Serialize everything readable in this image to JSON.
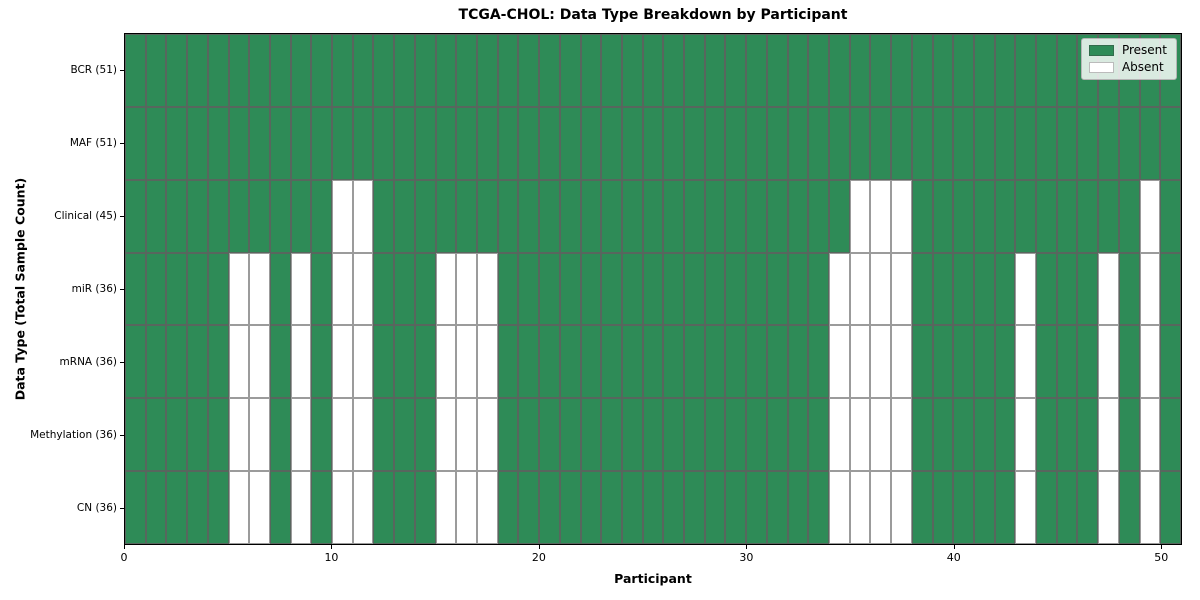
{
  "chart_data": {
    "type": "heatmap",
    "title": "TCGA-CHOL: Data Type Breakdown by Participant",
    "xlabel": "Participant",
    "ylabel": "Data Type (Total Sample Count)",
    "n_participants": 51,
    "x_range": [
      0,
      51
    ],
    "x_ticks": [
      0,
      10,
      20,
      30,
      40,
      50
    ],
    "grid": "cell-borders",
    "legend_position": "upper right",
    "legend": [
      {
        "label": "Present",
        "color": "#2e8b57"
      },
      {
        "label": "Absent",
        "color": "#ffffff"
      }
    ],
    "colors": {
      "present": "#2e8b57",
      "absent": "#ffffff",
      "cell_edge": "#5f5f5f",
      "frame": "#000000"
    },
    "rows": [
      {
        "label": "BCR (51)",
        "total": 51,
        "absent_participants": []
      },
      {
        "label": "MAF (51)",
        "total": 51,
        "absent_participants": []
      },
      {
        "label": "Clinical (45)",
        "total": 45,
        "absent_participants": [
          10,
          11,
          35,
          36,
          37,
          49
        ]
      },
      {
        "label": "miR (36)",
        "total": 36,
        "absent_participants": [
          5,
          6,
          8,
          10,
          11,
          15,
          16,
          17,
          34,
          35,
          36,
          37,
          43,
          47,
          49
        ]
      },
      {
        "label": "mRNA (36)",
        "total": 36,
        "absent_participants": [
          5,
          6,
          8,
          10,
          11,
          15,
          16,
          17,
          34,
          35,
          36,
          37,
          43,
          47,
          49
        ]
      },
      {
        "label": "Methylation (36)",
        "total": 36,
        "absent_participants": [
          5,
          6,
          8,
          10,
          11,
          15,
          16,
          17,
          34,
          35,
          36,
          37,
          43,
          47,
          49
        ]
      },
      {
        "label": "CN (36)",
        "total": 36,
        "absent_participants": [
          5,
          6,
          8,
          10,
          11,
          15,
          16,
          17,
          34,
          35,
          36,
          37,
          43,
          47,
          49
        ]
      }
    ]
  }
}
